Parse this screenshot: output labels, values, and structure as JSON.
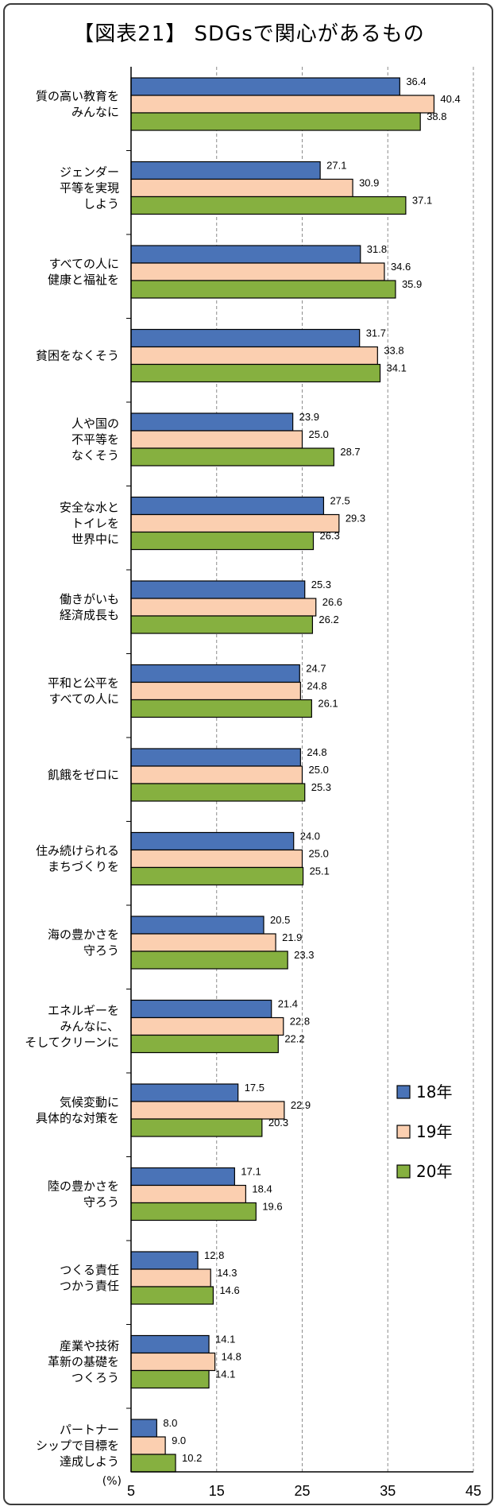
{
  "chart_data": {
    "type": "bar",
    "orientation": "horizontal",
    "title": "【図表21】 SDGsで関心があるもの",
    "unit": "(%)",
    "categories": [
      [
        "質の高い教育を",
        "みんなに"
      ],
      [
        "ジェンダー",
        "平等を実現",
        "しよう"
      ],
      [
        "すべての人に",
        "健康と福祉を"
      ],
      [
        "貧困をなくそう"
      ],
      [
        "人や国の",
        "不平等を",
        "なくそう"
      ],
      [
        "安全な水と",
        "トイレを",
        "世界中に"
      ],
      [
        "働きがいも",
        "経済成長も"
      ],
      [
        "平和と公平を",
        "すべての人に"
      ],
      [
        "飢餓をゼロに"
      ],
      [
        "住み続けられる",
        "まちづくりを"
      ],
      [
        "海の豊かさを",
        "守ろう"
      ],
      [
        "エネルギーを",
        "みんなに、",
        "そしてクリーンに"
      ],
      [
        "気候変動に",
        "具体的な対策を"
      ],
      [
        "陸の豊かさを",
        "守ろう"
      ],
      [
        "つくる責任",
        "つかう責任"
      ],
      [
        "産業や技術",
        "革新の基礎を",
        "つくろう"
      ],
      [
        "パートナー",
        "シップで目標を",
        "達成しよう"
      ]
    ],
    "series": [
      {
        "name": "18年",
        "color": "#4a73b7",
        "values": [
          36.4,
          27.1,
          31.8,
          31.7,
          23.9,
          27.5,
          25.3,
          24.7,
          24.8,
          24.0,
          20.5,
          21.4,
          17.5,
          17.1,
          12.8,
          14.1,
          8.0
        ]
      },
      {
        "name": "19年",
        "color": "#fbcfb0",
        "values": [
          40.4,
          30.9,
          34.6,
          33.8,
          25.0,
          29.3,
          26.6,
          24.8,
          25.0,
          25.0,
          21.9,
          22.8,
          22.9,
          18.4,
          14.3,
          14.8,
          9.0
        ]
      },
      {
        "name": "20年",
        "color": "#86b040",
        "values": [
          38.8,
          37.1,
          35.9,
          34.1,
          28.7,
          26.3,
          26.2,
          26.1,
          25.3,
          25.1,
          23.3,
          22.2,
          20.3,
          19.6,
          14.6,
          14.1,
          10.2
        ]
      }
    ],
    "xlim": [
      5,
      45
    ],
    "xticks": [
      "5",
      "15",
      "25",
      "35",
      "45"
    ],
    "grid": "vertical dashed",
    "legend_position": "right, lower"
  }
}
